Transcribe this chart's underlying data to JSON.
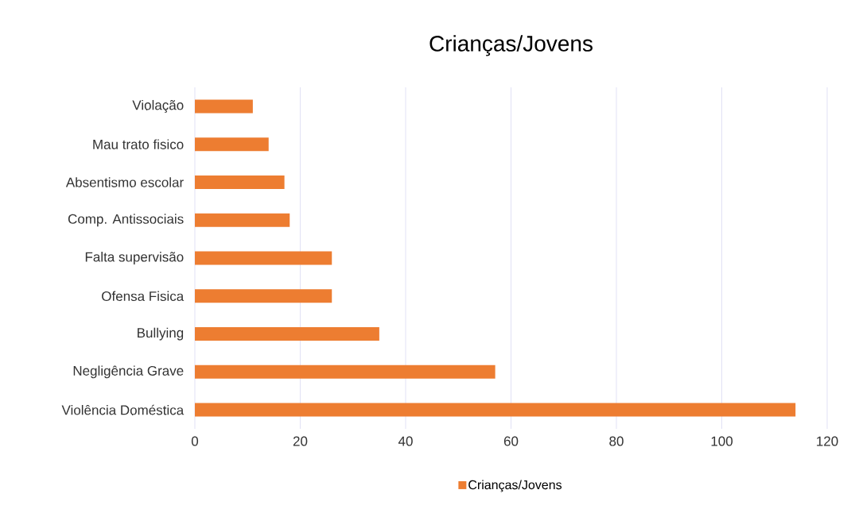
{
  "chart_data": {
    "type": "bar",
    "orientation": "horizontal",
    "title": "Crianças/Jovens",
    "categories": [
      "Violação",
      "Mau trato fisico",
      "Absentismo escolar",
      "Comp. Antissociais",
      "Falta supervisão",
      "Ofensa Fisica",
      "Bullying",
      "Negligência Grave",
      "Violência Doméstica"
    ],
    "series": [
      {
        "name": "Crianças/Jovens",
        "color": "#ed7d31",
        "values": [
          11,
          14,
          17,
          18,
          26,
          26,
          35,
          57,
          114
        ]
      }
    ],
    "xlim": [
      0,
      120
    ],
    "xticks": [
      0,
      20,
      40,
      60,
      80,
      100,
      120
    ],
    "grid": "x",
    "legend": "bottom"
  }
}
